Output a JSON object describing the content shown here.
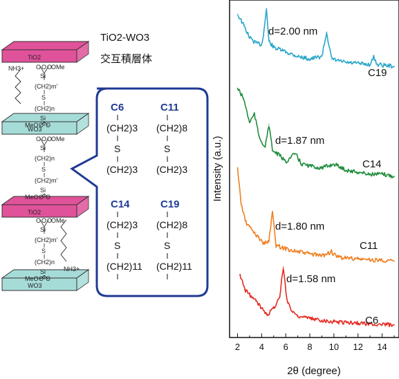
{
  "title": "TiO2-WO3",
  "subtitle": "交互積層体",
  "layers": [
    {
      "label": "TiO2",
      "color": "#e0529a"
    },
    {
      "label": "WO3",
      "color": "#a6dcd8"
    },
    {
      "label": "TiO2",
      "color": "#e0529a"
    },
    {
      "label": "WO3",
      "color": "#a6dcd8"
    }
  ],
  "linker": {
    "si": "Si",
    "o": "O",
    "ome": "OMe",
    "meo": "MeO",
    "s": "S",
    "ch2_m": "(CH2)m'",
    "ch2_n": "(CH2)n",
    "nh3": "NH3+"
  },
  "callout": {
    "items": [
      {
        "name": "C6",
        "upper": "(CH2)3",
        "s": "S",
        "lower": "(CH2)3"
      },
      {
        "name": "C11",
        "upper": "(CH2)8",
        "s": "S",
        "lower": "(CH2)3"
      },
      {
        "name": "C14",
        "upper": "(CH2)3",
        "s": "S",
        "lower": "(CH2)11"
      },
      {
        "name": "C19",
        "upper": "(CH2)8",
        "s": "S",
        "lower": "(CH2)11"
      }
    ]
  },
  "chart_data": {
    "type": "line",
    "xlabel": "2θ (degree)",
    "ylabel": "Intensity (a.u.)",
    "xlim": [
      1.8,
      15
    ],
    "xticks": [
      2,
      4,
      6,
      8,
      10,
      12,
      14
    ],
    "series": [
      {
        "name": "C19",
        "color": "#27a6c8",
        "annotation": "d=2.00 nm",
        "peak_x": 4.4,
        "x": [
          2.0,
          2.5,
          3.0,
          3.5,
          4.0,
          4.2,
          4.4,
          4.6,
          5.0,
          6.0,
          7.0,
          8.0,
          9.0,
          9.4,
          9.8,
          11.0,
          13.0,
          13.3,
          13.6,
          15.0
        ],
        "y": [
          0.92,
          0.8,
          0.66,
          0.6,
          0.58,
          0.74,
          0.98,
          0.62,
          0.55,
          0.5,
          0.45,
          0.42,
          0.45,
          0.72,
          0.42,
          0.38,
          0.36,
          0.44,
          0.36,
          0.34
        ]
      },
      {
        "name": "C14",
        "color": "#1e8c3a",
        "annotation": "d=1.87 nm",
        "peak_x": 4.6,
        "x": [
          2.0,
          2.5,
          3.0,
          3.4,
          3.8,
          4.3,
          4.6,
          4.9,
          5.5,
          6.0,
          6.8,
          7.3,
          8.0,
          9.0,
          10.0,
          11.0,
          12.0,
          13.0,
          14.0,
          15.0
        ],
        "y": [
          0.95,
          0.85,
          0.62,
          0.7,
          0.48,
          0.38,
          0.6,
          0.35,
          0.3,
          0.24,
          0.32,
          0.22,
          0.2,
          0.18,
          0.22,
          0.16,
          0.14,
          0.12,
          0.12,
          0.1
        ]
      },
      {
        "name": "C11",
        "color": "#f07d1e",
        "annotation": "d=1.80 nm",
        "peak_x": 4.9,
        "x": [
          2.0,
          2.3,
          2.7,
          3.2,
          3.7,
          4.2,
          4.6,
          4.9,
          5.2,
          6.0,
          7.0,
          8.0,
          9.0,
          9.8,
          10.2,
          11.0,
          12.0,
          13.0,
          14.0,
          15.0
        ],
        "y": [
          0.95,
          0.6,
          0.42,
          0.35,
          0.28,
          0.22,
          0.24,
          0.52,
          0.2,
          0.17,
          0.14,
          0.12,
          0.1,
          0.14,
          0.09,
          0.08,
          0.07,
          0.06,
          0.06,
          0.05
        ]
      },
      {
        "name": "C6",
        "color": "#e5271f",
        "annotation": "d=1.58 nm",
        "peak_x": 5.8,
        "x": [
          2.2,
          2.6,
          3.0,
          3.5,
          4.0,
          4.5,
          5.0,
          5.5,
          5.8,
          6.1,
          6.5,
          7.0,
          8.0,
          9.0,
          10.0,
          11.0,
          12.0,
          13.0,
          14.0,
          15.0
        ],
        "y": [
          0.75,
          0.55,
          0.48,
          0.4,
          0.3,
          0.22,
          0.3,
          0.45,
          0.85,
          0.42,
          0.26,
          0.2,
          0.16,
          0.14,
          0.12,
          0.11,
          0.1,
          0.09,
          0.08,
          0.08
        ]
      }
    ]
  }
}
